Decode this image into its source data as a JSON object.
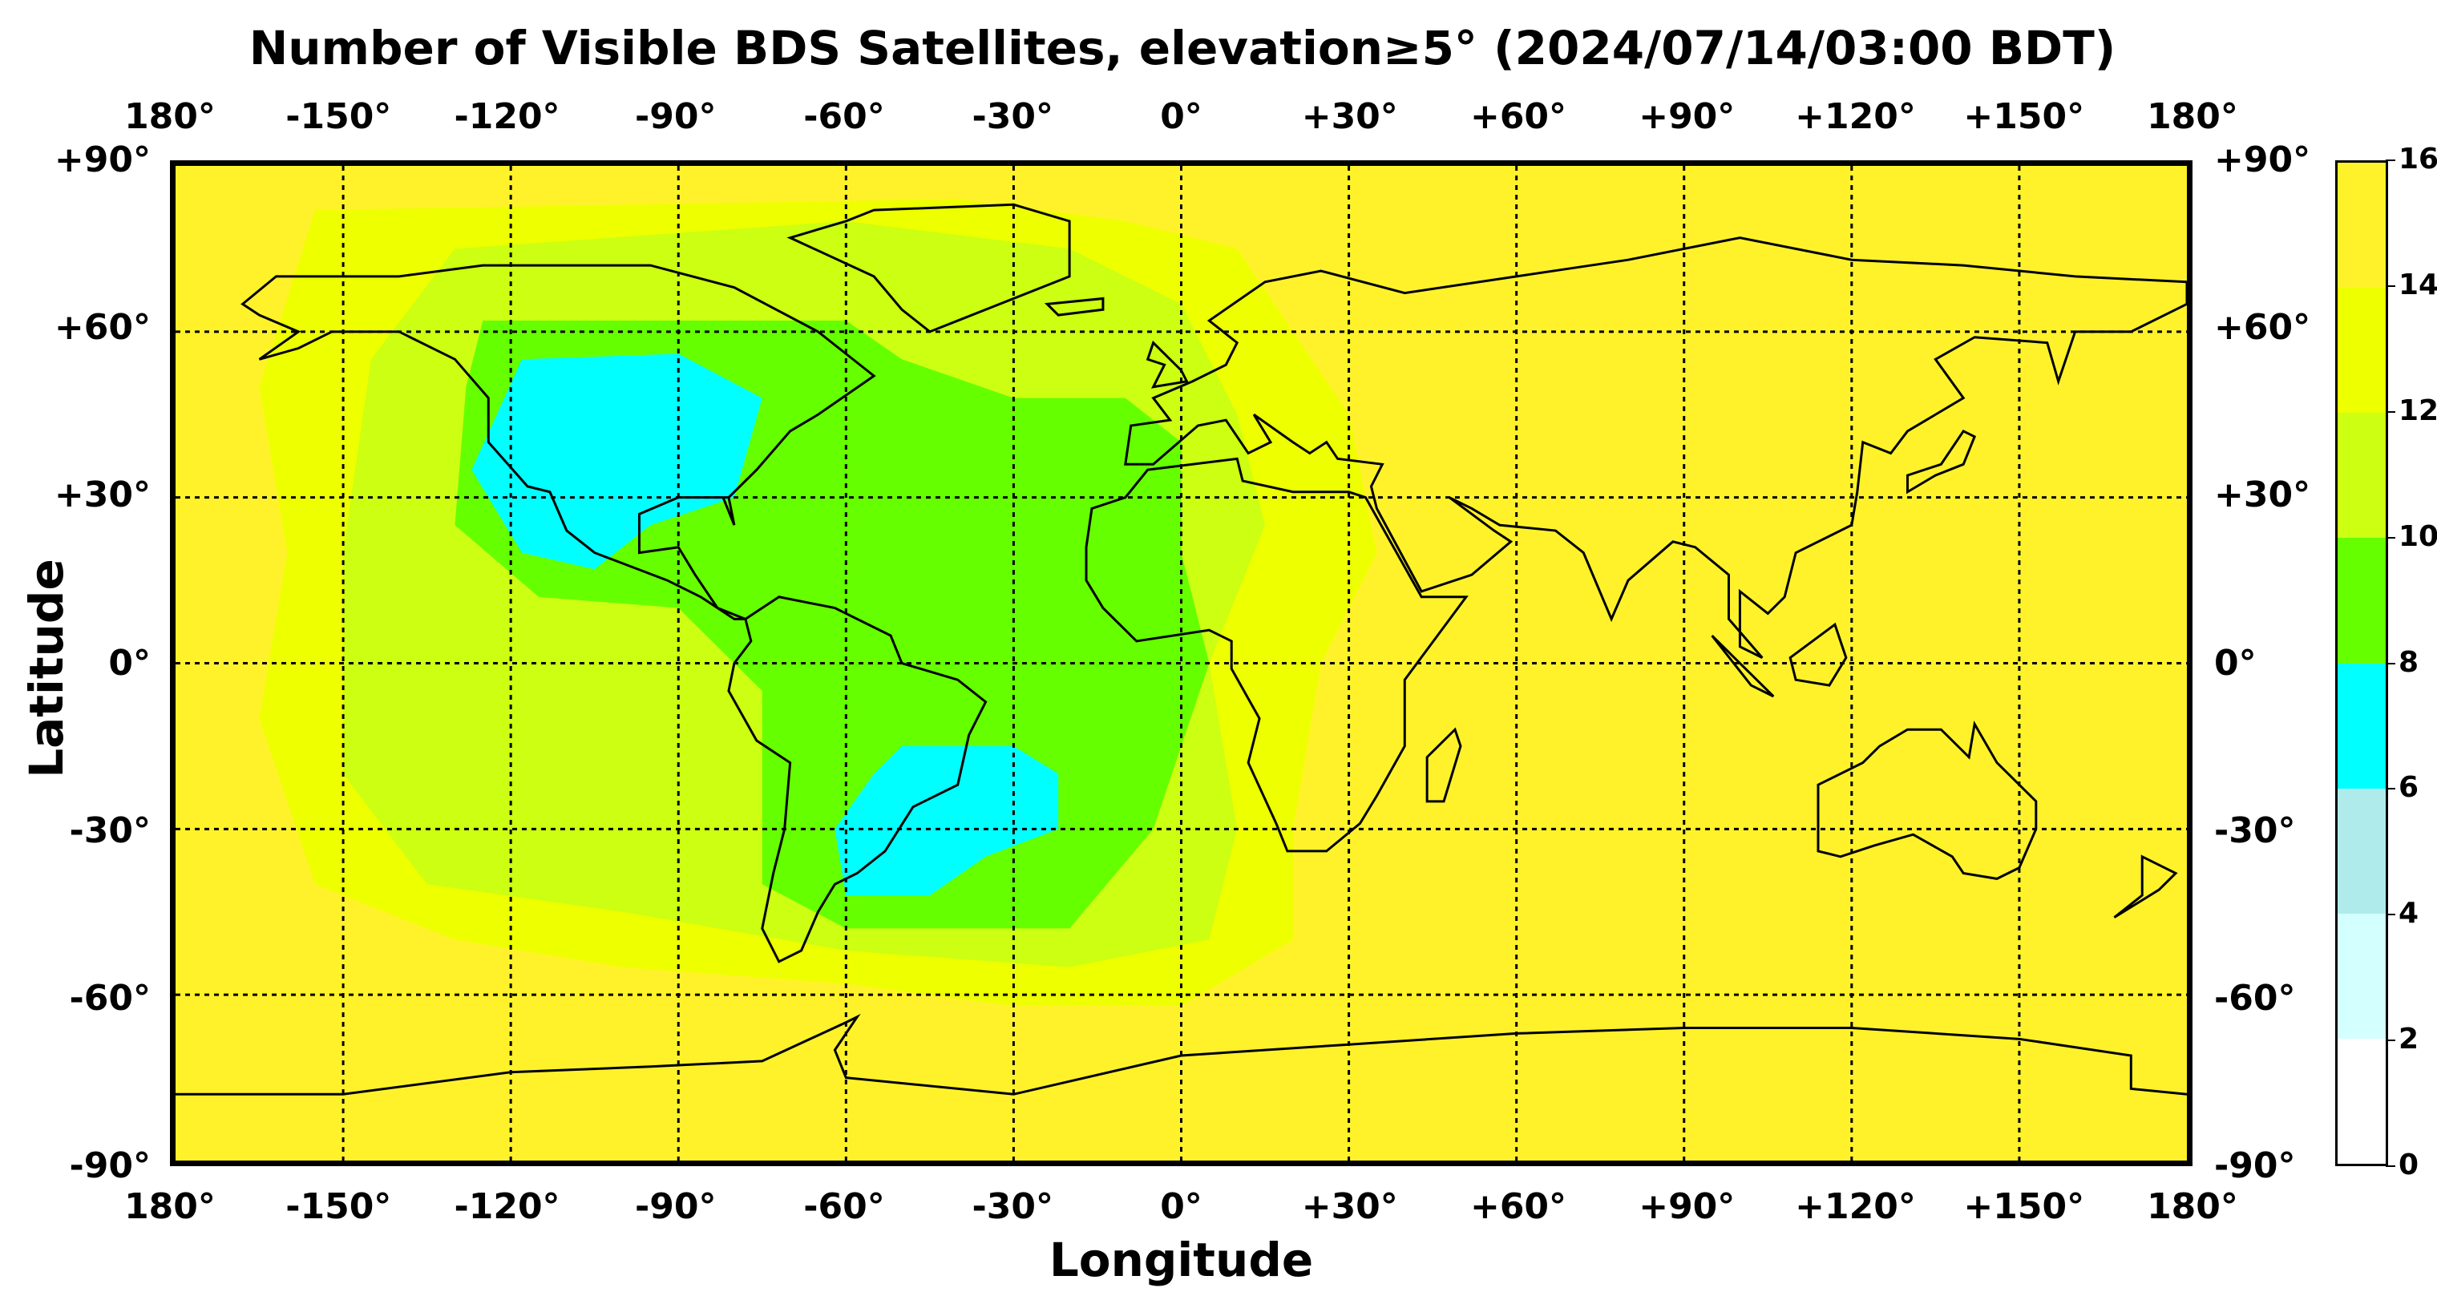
{
  "chart_data": {
    "type": "heatmap",
    "title": "Number of Visible BDS Satellites, elevation≥5° (2024/07/14/03:00 BDT)",
    "xlabel": "Longitude",
    "ylabel": "Latitude",
    "xlim": [
      -180,
      180
    ],
    "ylim": [
      -90,
      90
    ],
    "grid": true,
    "x_ticks": [
      "180°",
      "-150°",
      "-120°",
      "-90°",
      "-60°",
      "-30°",
      "0°",
      "+30°",
      "+60°",
      "+90°",
      "+120°",
      "+150°",
      "180°"
    ],
    "y_ticks": [
      "+90°",
      "+60°",
      "+30°",
      "0°",
      "-30°",
      "-60°",
      "-90°"
    ],
    "colorbar": {
      "ticks": [
        "0",
        "2",
        "4",
        "6",
        "8",
        "10",
        "12",
        "14",
        "16"
      ],
      "levels": [
        0,
        2,
        4,
        6,
        8,
        10,
        12,
        14,
        16
      ],
      "colors": [
        "#ffffff",
        "#d4ffff",
        "#b0ebeb",
        "#00ffff",
        "#66ff00",
        "#ccff11",
        "#eeff00",
        "#fff22a"
      ]
    },
    "background_value_range": [
      14,
      16
    ],
    "regions": [
      {
        "range": [
          12,
          14
        ],
        "lonlat": [
          [
            -155,
            82
          ],
          [
            -40,
            84
          ],
          [
            -10,
            80
          ],
          [
            10,
            75
          ],
          [
            20,
            60
          ],
          [
            30,
            45
          ],
          [
            35,
            20
          ],
          [
            25,
            0
          ],
          [
            20,
            -30
          ],
          [
            20,
            -50
          ],
          [
            0,
            -62
          ],
          [
            -30,
            -62
          ],
          [
            -60,
            -58
          ],
          [
            -100,
            -55
          ],
          [
            -130,
            -50
          ],
          [
            -155,
            -40
          ],
          [
            -165,
            -10
          ],
          [
            -160,
            20
          ],
          [
            -165,
            50
          ]
        ]
      },
      {
        "range": [
          10,
          12
        ],
        "lonlat": [
          [
            -130,
            75
          ],
          [
            -60,
            80
          ],
          [
            -20,
            75
          ],
          [
            0,
            65
          ],
          [
            10,
            45
          ],
          [
            15,
            25
          ],
          [
            5,
            0
          ],
          [
            10,
            -30
          ],
          [
            5,
            -50
          ],
          [
            -20,
            -55
          ],
          [
            -60,
            -52
          ],
          [
            -100,
            -45
          ],
          [
            -135,
            -40
          ],
          [
            -150,
            -20
          ],
          [
            -150,
            20
          ],
          [
            -145,
            55
          ]
        ]
      },
      {
        "range": [
          8,
          10
        ],
        "lonlat": [
          [
            -125,
            62
          ],
          [
            -60,
            62
          ],
          [
            -50,
            55
          ],
          [
            -30,
            48
          ],
          [
            -10,
            48
          ],
          [
            0,
            40
          ],
          [
            0,
            20
          ],
          [
            5,
            0
          ],
          [
            -5,
            -30
          ],
          [
            -20,
            -48
          ],
          [
            -60,
            -48
          ],
          [
            -75,
            -40
          ],
          [
            -75,
            -5
          ],
          [
            -90,
            10
          ],
          [
            -115,
            12
          ],
          [
            -130,
            25
          ],
          [
            -128,
            50
          ]
        ]
      },
      {
        "range": [
          6,
          8
        ],
        "lonlat": [
          [
            -118,
            55
          ],
          [
            -90,
            56
          ],
          [
            -75,
            48
          ],
          [
            -80,
            30
          ],
          [
            -95,
            25
          ],
          [
            -105,
            17
          ],
          [
            -118,
            20
          ],
          [
            -127,
            35
          ]
        ]
      },
      {
        "range": [
          6,
          8
        ],
        "lonlat": [
          [
            -50,
            -15
          ],
          [
            -30,
            -15
          ],
          [
            -22,
            -20
          ],
          [
            -22,
            -30
          ],
          [
            -35,
            -35
          ],
          [
            -45,
            -42
          ],
          [
            -60,
            -42
          ],
          [
            -62,
            -30
          ],
          [
            -55,
            -20
          ]
        ]
      }
    ]
  }
}
